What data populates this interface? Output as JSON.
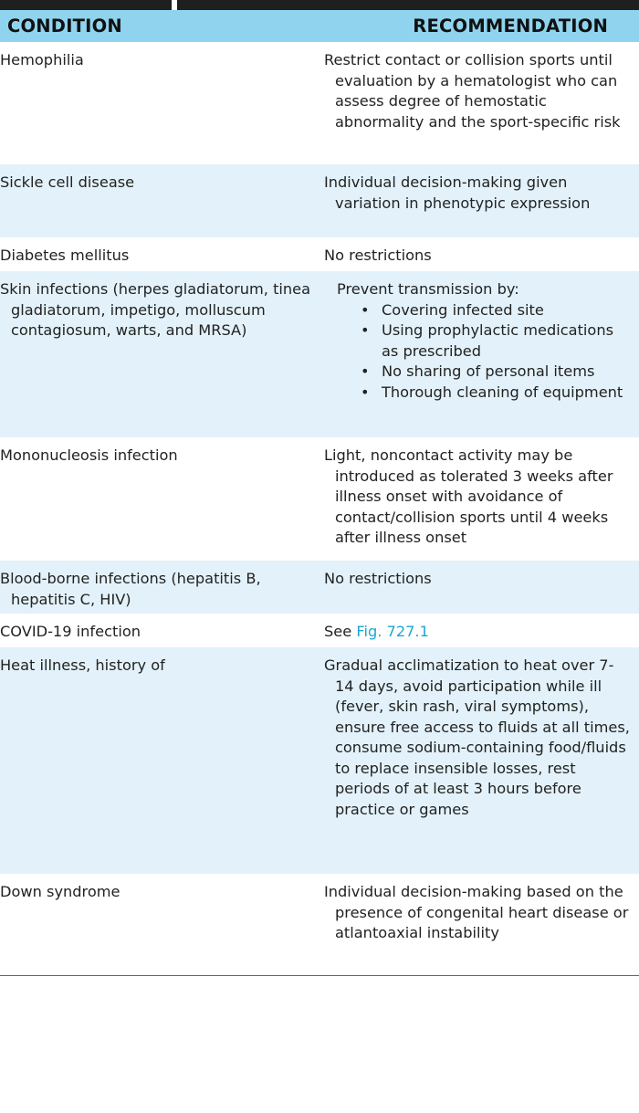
{
  "header": {
    "condition": "CONDITION",
    "recommendation": "RECOMMENDATION"
  },
  "rows": [
    {
      "condition": "Hemophilia",
      "recommendation": "Restrict contact or collision sports until evaluation by a hematologist who can assess degree of hemostatic abnormality and the sport-specific risk"
    },
    {
      "condition": "Sickle cell disease",
      "recommendation": "Individual decision-making given variation in phenotypic expression"
    },
    {
      "condition": "Diabetes mellitus",
      "recommendation": "No restrictions"
    },
    {
      "condition": "Skin infections (herpes gladiatorum, tinea gladiatorum, impetigo, molluscum contagiosum, warts, and MRSA)",
      "recommendation_intro": "Prevent transmission by:",
      "bullets": [
        "Covering infected site",
        "Using prophylactic medications as prescribed",
        "No sharing of personal items",
        "Thorough cleaning of equipment"
      ],
      "bullet_glyph": "•"
    },
    {
      "condition": "Mononucleosis infection",
      "recommendation": "Light, noncontact activity may be introduced as tolerated 3 weeks after illness onset with avoidance of contact/collision sports until 4 weeks after illness onset"
    },
    {
      "condition": "Blood-borne infections (hepatitis B, hepatitis C, HIV)",
      "recommendation": "No restrictions"
    },
    {
      "condition": "COVID-19 infection",
      "recommendation_prefix": "See ",
      "link_text": "Fig. 727.1"
    },
    {
      "condition": "Heat illness, history of",
      "recommendation": "Gradual acclimatization to heat over 7-14 days, avoid participation while ill (fever, skin rash, viral symptoms), ensure free access to fluids at all times, consume sodium-containing food/fluids to replace insensible losses, rest periods of at least 3 hours before practice or games"
    },
    {
      "condition": "Down syndrome",
      "recommendation": "Individual decision-making based on the presence of congenital heart disease or atlantoaxial instability"
    }
  ],
  "colors": {
    "header_bg": "#8fd3ee",
    "row_shaded_bg": "#e3f2fa",
    "row_white_bg": "#ffffff",
    "link": "#1ea6d1",
    "top_bar": "#1f1f1f"
  }
}
